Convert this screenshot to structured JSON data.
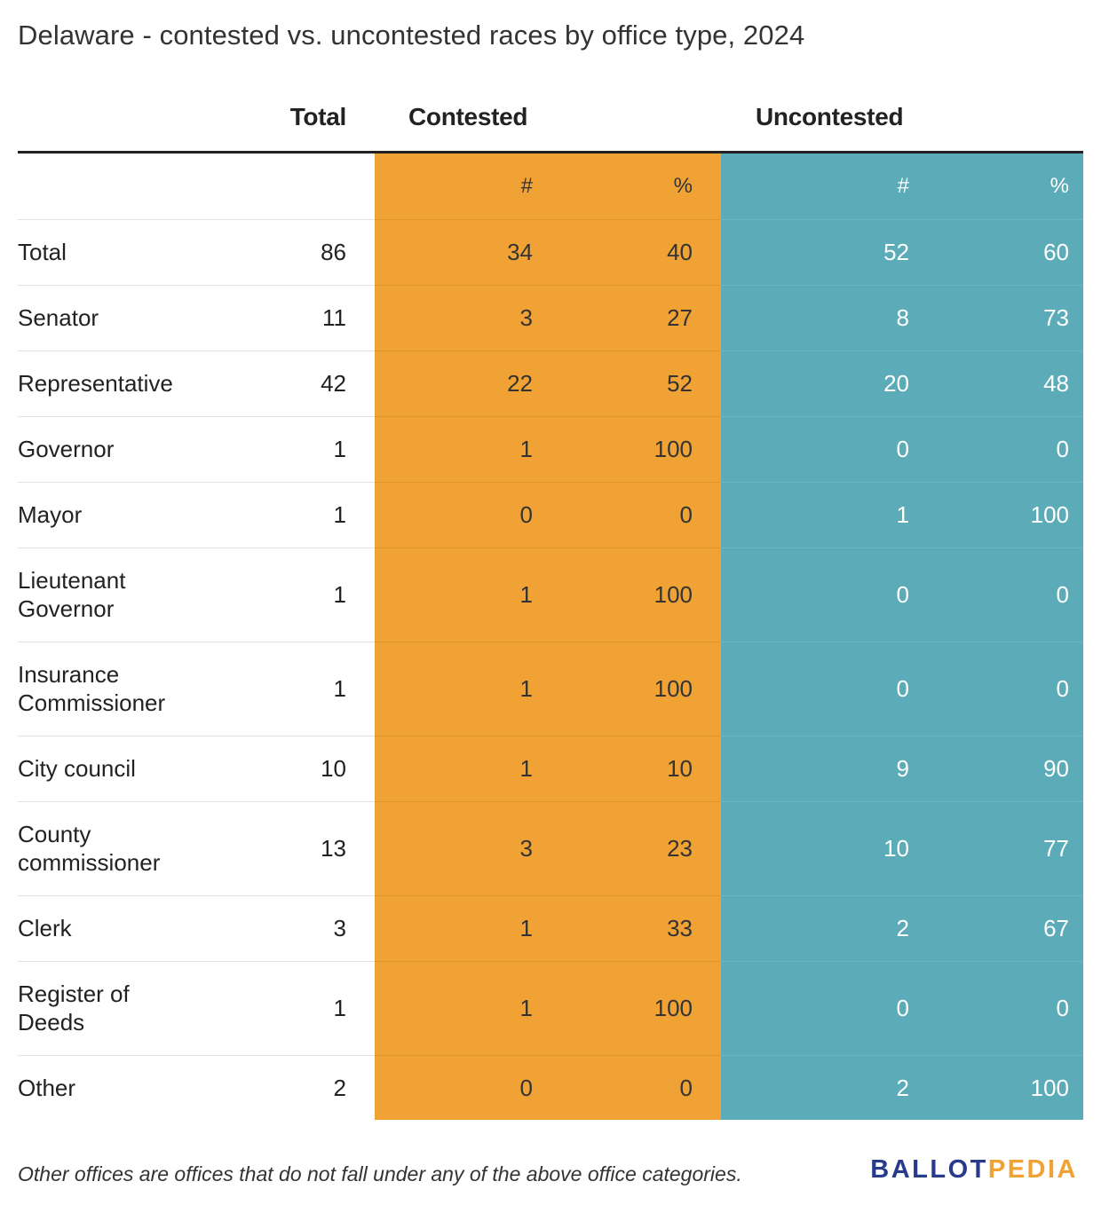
{
  "chart_data": {
    "type": "table",
    "title": "Delaware - contested vs. uncontested races by office type, 2024",
    "column_groups": {
      "total": "Total",
      "contested": "Contested",
      "uncontested": "Uncontested"
    },
    "subheaders": {
      "contested_num": "#",
      "contested_pct": "%",
      "uncontested_num": "#",
      "uncontested_pct": "%"
    },
    "rows": [
      {
        "label": "Total",
        "total": "86",
        "contested_num": "34",
        "contested_pct": "40",
        "uncontested_num": "52",
        "uncontested_pct": "60"
      },
      {
        "label": "Senator",
        "total": "11",
        "contested_num": "3",
        "contested_pct": "27",
        "uncontested_num": "8",
        "uncontested_pct": "73"
      },
      {
        "label": "Representative",
        "total": "42",
        "contested_num": "22",
        "contested_pct": "52",
        "uncontested_num": "20",
        "uncontested_pct": "48"
      },
      {
        "label": "Governor",
        "total": "1",
        "contested_num": "1",
        "contested_pct": "100",
        "uncontested_num": "0",
        "uncontested_pct": "0"
      },
      {
        "label": "Mayor",
        "total": "1",
        "contested_num": "0",
        "contested_pct": "0",
        "uncontested_num": "1",
        "uncontested_pct": "100"
      },
      {
        "label": "Lieutenant Governor",
        "total": "1",
        "contested_num": "1",
        "contested_pct": "100",
        "uncontested_num": "0",
        "uncontested_pct": "0"
      },
      {
        "label": "Insurance Commissioner",
        "total": "1",
        "contested_num": "1",
        "contested_pct": "100",
        "uncontested_num": "0",
        "uncontested_pct": "0"
      },
      {
        "label": "City council",
        "total": "10",
        "contested_num": "1",
        "contested_pct": "10",
        "uncontested_num": "9",
        "uncontested_pct": "90"
      },
      {
        "label": "County commissioner",
        "total": "13",
        "contested_num": "3",
        "contested_pct": "23",
        "uncontested_num": "10",
        "uncontested_pct": "77"
      },
      {
        "label": "Clerk",
        "total": "3",
        "contested_num": "1",
        "contested_pct": "33",
        "uncontested_num": "2",
        "uncontested_pct": "67"
      },
      {
        "label": "Register of Deeds",
        "total": "1",
        "contested_num": "1",
        "contested_pct": "100",
        "uncontested_num": "0",
        "uncontested_pct": "0"
      },
      {
        "label": "Other",
        "total": "2",
        "contested_num": "0",
        "contested_pct": "0",
        "uncontested_num": "2",
        "uncontested_pct": "100"
      }
    ],
    "colors": {
      "contested": "#f0a234",
      "uncontested": "#5bacb8"
    }
  },
  "footnote": "Other offices are offices that do not fall under any of the above office categories.",
  "brand": {
    "part1": "BALLOT",
    "part2": "PEDIA"
  }
}
